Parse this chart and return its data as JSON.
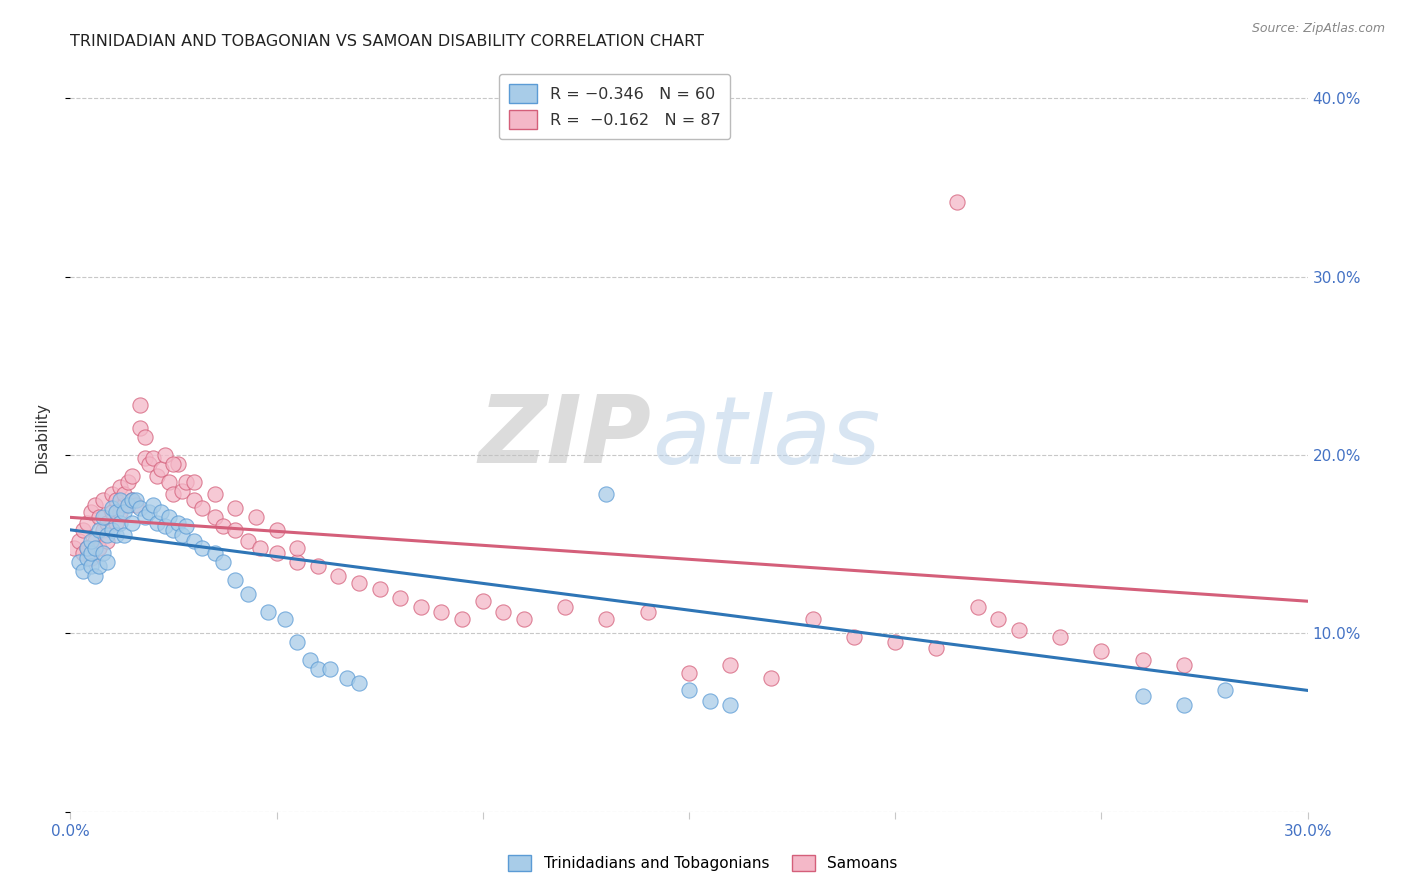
{
  "title": "TRINIDADIAN AND TOBAGONIAN VS SAMOAN DISABILITY CORRELATION CHART",
  "source": "Source: ZipAtlas.com",
  "ylabel": "Disability",
  "xlim": [
    0.0,
    0.3
  ],
  "ylim": [
    0.0,
    0.42
  ],
  "x_ticks": [
    0.0,
    0.05,
    0.1,
    0.15,
    0.2,
    0.25,
    0.3
  ],
  "y_ticks": [
    0.0,
    0.1,
    0.2,
    0.3,
    0.4
  ],
  "color_blue": "#a8cce8",
  "color_pink": "#f4b8c8",
  "edge_blue": "#5b9bd5",
  "edge_pink": "#d45f7a",
  "trendline_blue": "#2e75b6",
  "trendline_pink": "#d45f7a",
  "watermark_zip": "ZIP",
  "watermark_atlas": "atlas",
  "background": "#ffffff",
  "grid_color": "#c8c8c8",
  "blue_scatter_x": [
    0.002,
    0.003,
    0.004,
    0.004,
    0.005,
    0.005,
    0.005,
    0.006,
    0.006,
    0.007,
    0.007,
    0.008,
    0.008,
    0.009,
    0.009,
    0.01,
    0.01,
    0.011,
    0.011,
    0.012,
    0.012,
    0.013,
    0.013,
    0.014,
    0.015,
    0.015,
    0.016,
    0.017,
    0.018,
    0.019,
    0.02,
    0.021,
    0.022,
    0.023,
    0.024,
    0.025,
    0.026,
    0.027,
    0.028,
    0.03,
    0.032,
    0.035,
    0.037,
    0.04,
    0.043,
    0.048,
    0.052,
    0.055,
    0.058,
    0.06,
    0.063,
    0.067,
    0.07,
    0.13,
    0.15,
    0.155,
    0.16,
    0.26,
    0.27,
    0.28
  ],
  "blue_scatter_y": [
    0.14,
    0.135,
    0.142,
    0.148,
    0.138,
    0.145,
    0.152,
    0.132,
    0.148,
    0.138,
    0.158,
    0.145,
    0.165,
    0.14,
    0.155,
    0.158,
    0.17,
    0.155,
    0.168,
    0.162,
    0.175,
    0.155,
    0.168,
    0.172,
    0.175,
    0.162,
    0.175,
    0.17,
    0.165,
    0.168,
    0.172,
    0.162,
    0.168,
    0.16,
    0.165,
    0.158,
    0.162,
    0.155,
    0.16,
    0.152,
    0.148,
    0.145,
    0.14,
    0.13,
    0.122,
    0.112,
    0.108,
    0.095,
    0.085,
    0.08,
    0.08,
    0.075,
    0.072,
    0.178,
    0.068,
    0.062,
    0.06,
    0.065,
    0.06,
    0.068
  ],
  "pink_scatter_x": [
    0.001,
    0.002,
    0.003,
    0.003,
    0.004,
    0.004,
    0.005,
    0.005,
    0.006,
    0.006,
    0.007,
    0.007,
    0.008,
    0.008,
    0.009,
    0.009,
    0.01,
    0.01,
    0.011,
    0.011,
    0.012,
    0.012,
    0.013,
    0.013,
    0.014,
    0.015,
    0.015,
    0.016,
    0.017,
    0.017,
    0.018,
    0.018,
    0.019,
    0.02,
    0.021,
    0.022,
    0.023,
    0.024,
    0.025,
    0.026,
    0.027,
    0.028,
    0.03,
    0.032,
    0.035,
    0.037,
    0.04,
    0.043,
    0.046,
    0.05,
    0.055,
    0.06,
    0.065,
    0.07,
    0.075,
    0.08,
    0.085,
    0.09,
    0.095,
    0.1,
    0.105,
    0.11,
    0.12,
    0.13,
    0.14,
    0.15,
    0.16,
    0.17,
    0.18,
    0.19,
    0.2,
    0.21,
    0.215,
    0.22,
    0.225,
    0.23,
    0.24,
    0.25,
    0.26,
    0.27,
    0.025,
    0.03,
    0.035,
    0.04,
    0.045,
    0.05,
    0.055
  ],
  "pink_scatter_y": [
    0.148,
    0.152,
    0.145,
    0.158,
    0.148,
    0.162,
    0.142,
    0.168,
    0.152,
    0.172,
    0.148,
    0.165,
    0.158,
    0.175,
    0.152,
    0.162,
    0.168,
    0.178,
    0.162,
    0.175,
    0.168,
    0.182,
    0.172,
    0.178,
    0.185,
    0.175,
    0.188,
    0.172,
    0.215,
    0.228,
    0.198,
    0.21,
    0.195,
    0.198,
    0.188,
    0.192,
    0.2,
    0.185,
    0.178,
    0.195,
    0.18,
    0.185,
    0.175,
    0.17,
    0.165,
    0.16,
    0.158,
    0.152,
    0.148,
    0.145,
    0.14,
    0.138,
    0.132,
    0.128,
    0.125,
    0.12,
    0.115,
    0.112,
    0.108,
    0.118,
    0.112,
    0.108,
    0.115,
    0.108,
    0.112,
    0.078,
    0.082,
    0.075,
    0.108,
    0.098,
    0.095,
    0.092,
    0.342,
    0.115,
    0.108,
    0.102,
    0.098,
    0.09,
    0.085,
    0.082,
    0.195,
    0.185,
    0.178,
    0.17,
    0.165,
    0.158,
    0.148
  ],
  "blue_trend_x0": 0.0,
  "blue_trend_y0": 0.158,
  "blue_trend_x1": 0.3,
  "blue_trend_y1": 0.068,
  "pink_trend_x0": 0.0,
  "pink_trend_y0": 0.165,
  "pink_trend_x1": 0.3,
  "pink_trend_y1": 0.118
}
